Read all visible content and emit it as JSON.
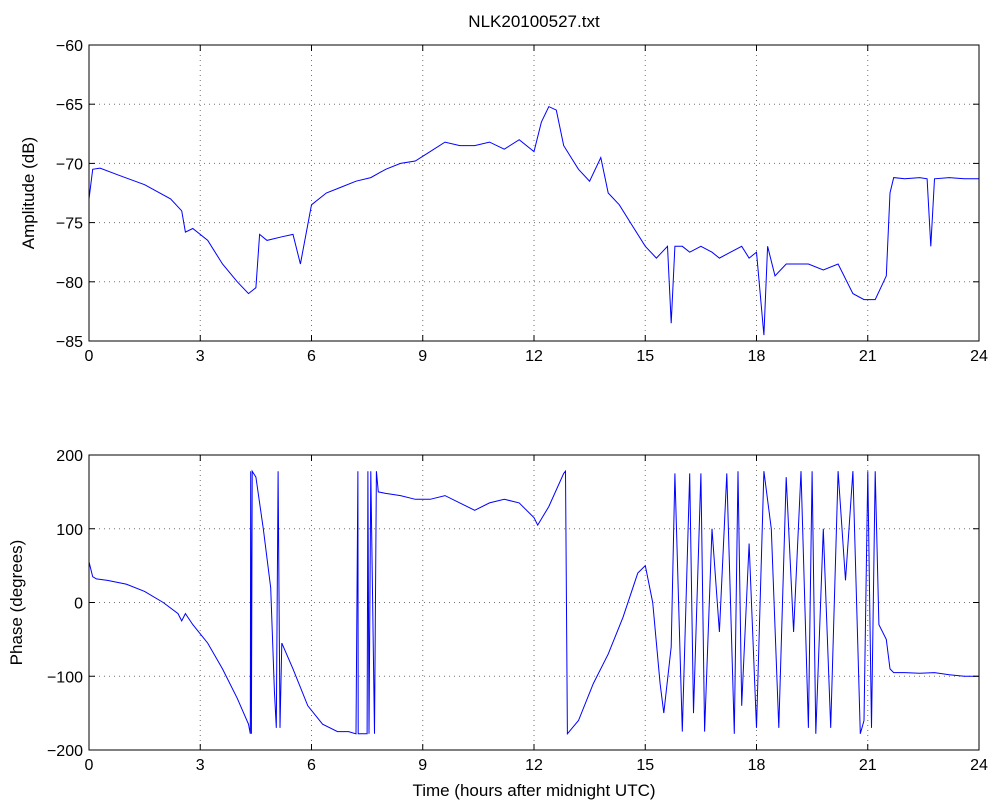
{
  "chart_data": [
    {
      "type": "line",
      "title": "NLK20100527.txt",
      "xlabel": "",
      "ylabel": "Amplitude (dB)",
      "xlim": [
        0,
        24
      ],
      "ylim": [
        -85,
        -60
      ],
      "xticks": [
        "0",
        "3",
        "6",
        "9",
        "12",
        "15",
        "18",
        "21",
        "24"
      ],
      "yticks": [
        "−60",
        "−65",
        "−70",
        "−75",
        "−80",
        "−85"
      ],
      "grid": true,
      "series": [
        {
          "color": "#0000ff",
          "x": [
            0,
            0.1,
            0.3,
            0.8,
            1.5,
            2.2,
            2.5,
            2.6,
            2.8,
            3.2,
            3.6,
            4.0,
            4.3,
            4.5,
            4.6,
            4.8,
            5.2,
            5.5,
            5.7,
            6.0,
            6.4,
            6.8,
            7.2,
            7.6,
            8.0,
            8.4,
            8.8,
            9.2,
            9.6,
            10.0,
            10.4,
            10.8,
            11.2,
            11.6,
            12.0,
            12.2,
            12.4,
            12.6,
            12.8,
            13.0,
            13.2,
            13.5,
            13.8,
            14.0,
            14.3,
            14.6,
            15.0,
            15.3,
            15.6,
            15.7,
            15.8,
            16.0,
            16.2,
            16.5,
            16.8,
            17.0,
            17.3,
            17.6,
            17.8,
            18.0,
            18.2,
            18.3,
            18.5,
            18.8,
            19.0,
            19.4,
            19.8,
            20.2,
            20.6,
            20.9,
            21.2,
            21.5,
            21.6,
            21.7,
            22.0,
            22.4,
            22.6,
            22.7,
            22.8,
            23.2,
            23.6,
            24.0
          ],
          "y": [
            -73,
            -70.5,
            -70.4,
            -71,
            -71.8,
            -73,
            -74,
            -75.8,
            -75.5,
            -76.5,
            -78.5,
            -80,
            -81,
            -80.5,
            -76,
            -76.5,
            -76.2,
            -76,
            -78.5,
            -73.5,
            -72.5,
            -72,
            -71.5,
            -71.2,
            -70.5,
            -70,
            -69.8,
            -69,
            -68.2,
            -68.5,
            -68.5,
            -68.2,
            -68.8,
            -68,
            -69,
            -66.5,
            -65.2,
            -65.5,
            -68.5,
            -69.5,
            -70.5,
            -71.5,
            -69.5,
            -72.5,
            -73.5,
            -75,
            -77,
            -78,
            -77,
            -83.5,
            -77,
            -77,
            -77.5,
            -77,
            -77.5,
            -78,
            -77.5,
            -77,
            -78,
            -77.5,
            -84.5,
            -77,
            -79.5,
            -78.5,
            -78.5,
            -78.5,
            -79,
            -78.5,
            -81,
            -81.5,
            -81.5,
            -79.5,
            -72.5,
            -71.2,
            -71.3,
            -71.2,
            -71.3,
            -77,
            -71.3,
            -71.2,
            -71.3,
            -71.3
          ]
        }
      ]
    },
    {
      "type": "line",
      "title": "",
      "xlabel": "Time (hours after midnight UTC)",
      "ylabel": "Phase (degrees)",
      "xlim": [
        0,
        24
      ],
      "ylim": [
        -200,
        200
      ],
      "xticks": [
        "0",
        "3",
        "6",
        "9",
        "12",
        "15",
        "18",
        "21",
        "24"
      ],
      "yticks": [
        "200",
        "100",
        "0",
        "−100",
        "−200"
      ],
      "grid": true,
      "series": [
        {
          "color": "#0000ff",
          "x": [
            0,
            0.1,
            0.2,
            0.5,
            1.0,
            1.5,
            2.0,
            2.4,
            2.5,
            2.6,
            2.8,
            3.2,
            3.6,
            4.0,
            4.3,
            4.35,
            4.36,
            4.38,
            4.4,
            4.5,
            4.7,
            4.9,
            5.0,
            5.05,
            5.1,
            5.15,
            5.2,
            5.5,
            5.9,
            6.3,
            6.7,
            7.0,
            7.2,
            7.25,
            7.26,
            7.3,
            7.5,
            7.52,
            7.55,
            7.6,
            7.7,
            7.75,
            7.8,
            8.0,
            8.4,
            8.8,
            9.2,
            9.6,
            10.0,
            10.4,
            10.8,
            11.2,
            11.6,
            12.0,
            12.1,
            12.4,
            12.8,
            12.85,
            12.9,
            13.2,
            13.6,
            14.0,
            14.4,
            14.8,
            15.0,
            15.2,
            15.4,
            15.5,
            15.7,
            15.8,
            16.0,
            16.2,
            16.3,
            16.5,
            16.6,
            16.8,
            17.0,
            17.2,
            17.4,
            17.5,
            17.6,
            17.8,
            18.0,
            18.2,
            18.4,
            18.6,
            18.8,
            19.0,
            19.2,
            19.4,
            19.5,
            19.6,
            19.8,
            20.0,
            20.2,
            20.4,
            20.6,
            20.8,
            20.9,
            21.0,
            21.1,
            21.2,
            21.3,
            21.5,
            21.6,
            21.7,
            22.0,
            22.4,
            22.8,
            23.2,
            23.6,
            24.0
          ],
          "y": [
            55,
            35,
            32,
            30,
            25,
            15,
            0,
            -15,
            -25,
            -15,
            -30,
            -55,
            -90,
            -130,
            -165,
            -178,
            178,
            -178,
            178,
            170,
            100,
            20,
            -120,
            -170,
            178,
            -170,
            -55,
            -90,
            -140,
            -165,
            -175,
            -175,
            -178,
            178,
            -178,
            -178,
            -178,
            178,
            -178,
            178,
            -178,
            178,
            150,
            148,
            145,
            140,
            140,
            145,
            135,
            125,
            135,
            140,
            135,
            115,
            105,
            130,
            175,
            178,
            -178,
            -160,
            -110,
            -70,
            -20,
            40,
            50,
            0,
            -110,
            -150,
            -60,
            175,
            -175,
            175,
            -150,
            175,
            -175,
            100,
            -40,
            175,
            -178,
            178,
            -140,
            80,
            -170,
            178,
            100,
            -170,
            170,
            -40,
            178,
            -170,
            178,
            -178,
            100,
            -170,
            178,
            30,
            178,
            -178,
            -160,
            178,
            -170,
            178,
            -30,
            -50,
            -90,
            -95,
            -95,
            -96,
            -95,
            -98,
            -100,
            -100
          ]
        }
      ]
    }
  ]
}
